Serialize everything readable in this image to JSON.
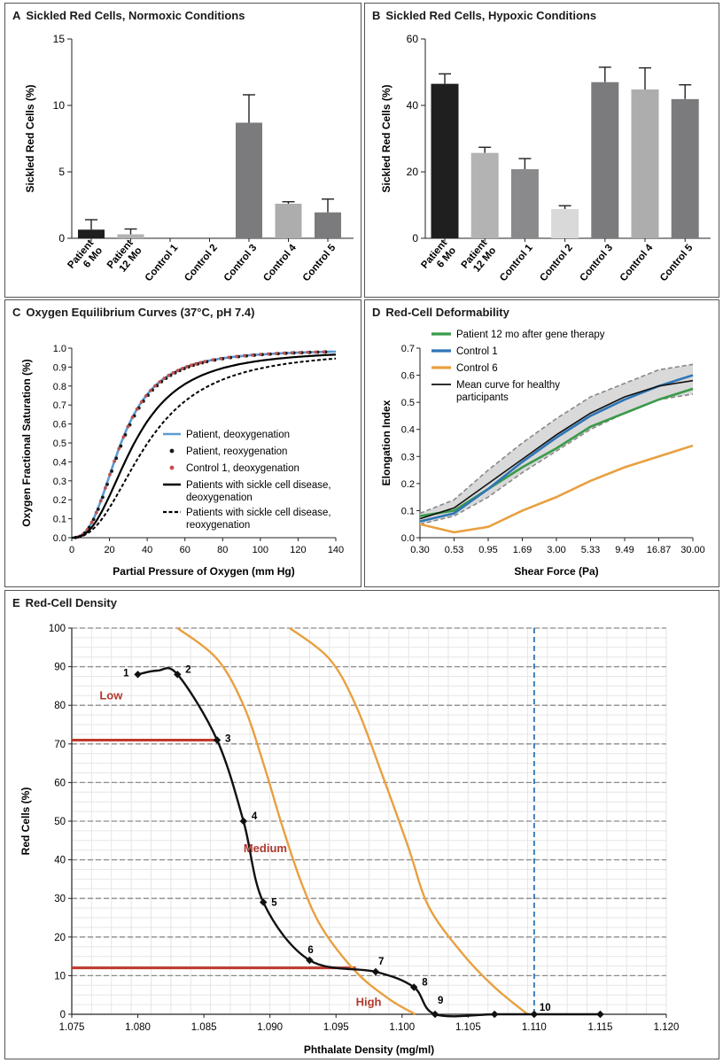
{
  "chart_data": [
    {
      "id": "A",
      "letter": "A",
      "type": "bar",
      "title": "Sickled Red Cells, Normoxic Conditions",
      "ylabel": "Sickled Red Cells (%)",
      "xlabel": "",
      "ylim": [
        0,
        15
      ],
      "yticks": [
        0,
        5,
        10,
        15
      ],
      "bars": [
        {
          "label": "Patient 6 Mo",
          "lines": [
            "Patient",
            "6 Mo"
          ],
          "value": 0.65,
          "error": 0.75,
          "color": "#1f1f1f"
        },
        {
          "label": "Patient 12 Mo",
          "lines": [
            "Patient",
            "12 Mo"
          ],
          "value": 0.3,
          "error": 0.4,
          "color": "#b3b3b3"
        },
        {
          "label": "Control 1",
          "lines": [
            "Control 1"
          ],
          "value": 0,
          "error": 0,
          "color": "#8a8a8c"
        },
        {
          "label": "Control 2",
          "lines": [
            "Control 2"
          ],
          "value": 0,
          "error": 0,
          "color": "#d9d9d9"
        },
        {
          "label": "Control 3",
          "lines": [
            "Control 3"
          ],
          "value": 8.7,
          "error": 2.1,
          "color": "#7b7b7d"
        },
        {
          "label": "Control 4",
          "lines": [
            "Control 4"
          ],
          "value": 2.6,
          "error": 0.15,
          "color": "#adadad"
        },
        {
          "label": "Control 5",
          "lines": [
            "Control 5"
          ],
          "value": 1.95,
          "error": 1.0,
          "color": "#7b7b7d"
        }
      ]
    },
    {
      "id": "B",
      "letter": "B",
      "type": "bar",
      "title": "Sickled Red Cells, Hypoxic Conditions",
      "ylabel": "Sickled Red Cells (%)",
      "xlabel": "",
      "ylim": [
        0,
        60
      ],
      "yticks": [
        0,
        20,
        40,
        60
      ],
      "bars": [
        {
          "label": "Patient 6 Mo",
          "lines": [
            "Patient",
            "6 Mo"
          ],
          "value": 46.5,
          "error": 3.0,
          "color": "#1f1f1f"
        },
        {
          "label": "Patient 12 Mo",
          "lines": [
            "Patient",
            "12 Mo"
          ],
          "value": 25.7,
          "error": 1.7,
          "color": "#b3b3b3"
        },
        {
          "label": "Control 1",
          "lines": [
            "Control 1"
          ],
          "value": 20.8,
          "error": 3.2,
          "color": "#8a8a8c"
        },
        {
          "label": "Control 2",
          "lines": [
            "Control 2"
          ],
          "value": 8.8,
          "error": 1.0,
          "color": "#d9d9d9"
        },
        {
          "label": "Control 3",
          "lines": [
            "Control 3"
          ],
          "value": 47.0,
          "error": 4.5,
          "color": "#7b7b7d"
        },
        {
          "label": "Control 4",
          "lines": [
            "Control 4"
          ],
          "value": 44.8,
          "error": 6.5,
          "color": "#adadad"
        },
        {
          "label": "Control 5",
          "lines": [
            "Control 5"
          ],
          "value": 41.9,
          "error": 4.3,
          "color": "#7b7b7d"
        }
      ]
    },
    {
      "id": "C",
      "letter": "C",
      "type": "line",
      "title": "Oxygen Equilibrium Curves (37°C, pH 7.4)",
      "ylabel": "Oxygen Fractional Saturation (%)",
      "xlabel": "Partial Pressure of Oxygen (mm Hg)",
      "xlim": [
        0,
        140
      ],
      "ylim": [
        0,
        1
      ],
      "xticks": [
        0,
        20,
        40,
        60,
        80,
        100,
        120,
        140
      ],
      "yticks": [
        0.0,
        0.1,
        0.2,
        0.3,
        0.4,
        0.5,
        0.6,
        0.7,
        0.8,
        0.9,
        1.0
      ],
      "series": [
        {
          "name": "Patient, deoxygenation",
          "style": "line",
          "color": "#5b9bd5",
          "p50": 26,
          "n": 2.7
        },
        {
          "name": "Patient, reoxygenation",
          "style": "points",
          "color": "#1a1a1a",
          "p50": 26.5,
          "n": 2.7
        },
        {
          "name": "Control 1, deoxygenation",
          "style": "points",
          "color": "#c0504d",
          "p50": 26,
          "n": 2.7
        },
        {
          "name": "Patients with sickle cell disease, deoxygenation",
          "lines": [
            "Patients with sickle cell disease,",
            "deoxygenation"
          ],
          "style": "line",
          "color": "#000000",
          "p50": 33,
          "n": 2.5
        },
        {
          "name": "Patients with sickle cell disease, reoxygenation",
          "lines": [
            "Patients with sickle cell disease,",
            "reoxygenation"
          ],
          "style": "dashed",
          "color": "#000000",
          "p50": 40,
          "n": 2.4
        }
      ]
    },
    {
      "id": "D",
      "letter": "D",
      "type": "line",
      "title": "Red-Cell Deformability",
      "ylabel": "Elongation Index",
      "xlabel": "Shear Force (Pa)",
      "categories": [
        "0.30",
        "0.53",
        "0.95",
        "1.69",
        "3.00",
        "5.33",
        "9.49",
        "16.87",
        "30.00"
      ],
      "ylim": [
        0,
        0.7
      ],
      "yticks": [
        0.0,
        0.1,
        0.2,
        0.3,
        0.4,
        0.5,
        0.6,
        0.7
      ],
      "band": {
        "upper": [
          0.09,
          0.14,
          0.25,
          0.35,
          0.44,
          0.52,
          0.57,
          0.62,
          0.64
        ],
        "lower": [
          0.05,
          0.08,
          0.15,
          0.24,
          0.32,
          0.4,
          0.46,
          0.51,
          0.53
        ]
      },
      "series": [
        {
          "name": "Patient 12 mo after gene therapy",
          "color": "#3a9a4a",
          "values": [
            0.08,
            0.1,
            0.18,
            0.26,
            0.33,
            0.41,
            0.46,
            0.51,
            0.55
          ]
        },
        {
          "name": "Control 1",
          "color": "#2e75b6",
          "values": [
            0.06,
            0.09,
            0.18,
            0.28,
            0.37,
            0.45,
            0.51,
            0.56,
            0.6
          ]
        },
        {
          "name": "Control 6",
          "color": "#e8a040",
          "values": [
            0.05,
            0.02,
            0.04,
            0.1,
            0.15,
            0.21,
            0.26,
            0.3,
            0.34
          ]
        },
        {
          "name": "Mean curve for healthy participants",
          "lines": [
            "Mean curve for healthy",
            "participants"
          ],
          "color": "#111111",
          "values": [
            0.07,
            0.11,
            0.2,
            0.29,
            0.38,
            0.46,
            0.52,
            0.56,
            0.58
          ]
        }
      ]
    },
    {
      "id": "E",
      "letter": "E",
      "type": "line",
      "title": "Red-Cell Density",
      "ylabel": "Red Cells (%)",
      "xlabel": "Phthalate Density (mg/ml)",
      "xlim": [
        1.075,
        1.12
      ],
      "ylim": [
        0,
        100
      ],
      "xticks": [
        "1.075",
        "1.080",
        "1.085",
        "1.090",
        "1.095",
        "1.100",
        "1.105",
        "1.110",
        "1.115",
        "1.120"
      ],
      "yticks": [
        0,
        10,
        20,
        30,
        40,
        50,
        60,
        70,
        80,
        90,
        100
      ],
      "points": [
        {
          "label": "1",
          "x": 1.08,
          "y": 88
        },
        {
          "label": "2",
          "x": 1.083,
          "y": 88
        },
        {
          "label": "3",
          "x": 1.086,
          "y": 71
        },
        {
          "label": "4",
          "x": 1.088,
          "y": 50
        },
        {
          "label": "5",
          "x": 1.0895,
          "y": 29
        },
        {
          "label": "6",
          "x": 1.093,
          "y": 14
        },
        {
          "label": "7",
          "x": 1.098,
          "y": 11
        },
        {
          "label": "8",
          "x": 1.1009,
          "y": 7
        },
        {
          "label": "9",
          "x": 1.1025,
          "y": 0
        },
        {
          "label": "10",
          "x": 1.11,
          "y": 0
        }
      ],
      "extra_markers": [
        {
          "x": 1.107,
          "y": 0
        },
        {
          "x": 1.115,
          "y": 0
        }
      ],
      "patient_curve_color": "#111111",
      "reference_curves": [
        {
          "name": "reference-low",
          "color": "#e8a040",
          "x": [
            1.083,
            1.086,
            1.088,
            1.0895,
            1.091,
            1.0925,
            1.094,
            1.0965,
            1.099,
            1.101
          ],
          "y": [
            100,
            92,
            80,
            65,
            48,
            33,
            22,
            11,
            4,
            0
          ]
        },
        {
          "name": "reference-high",
          "color": "#e8a040",
          "x": [
            1.0915,
            1.0945,
            1.0965,
            1.0985,
            1.1005,
            1.102,
            1.1045,
            1.107,
            1.1095
          ],
          "y": [
            100,
            92,
            80,
            62,
            43,
            28,
            16,
            7,
            0
          ]
        }
      ],
      "threshold_lines": [
        {
          "y": 71,
          "x_end": 1.086,
          "color": "#c0392b"
        },
        {
          "y": 12,
          "x_end": 1.0965,
          "color": "#c0392b"
        }
      ],
      "vline": {
        "x": 1.11,
        "color": "#2e75b6"
      },
      "zones": [
        {
          "label": "Low",
          "x": 1.0771,
          "y": 81.5,
          "color": "#b03a2e"
        },
        {
          "label": "Medium",
          "x": 1.088,
          "y": 42,
          "color": "#b03a2e"
        },
        {
          "label": "High",
          "x": 1.0965,
          "y": 2.2,
          "color": "#b03a2e"
        }
      ]
    }
  ]
}
